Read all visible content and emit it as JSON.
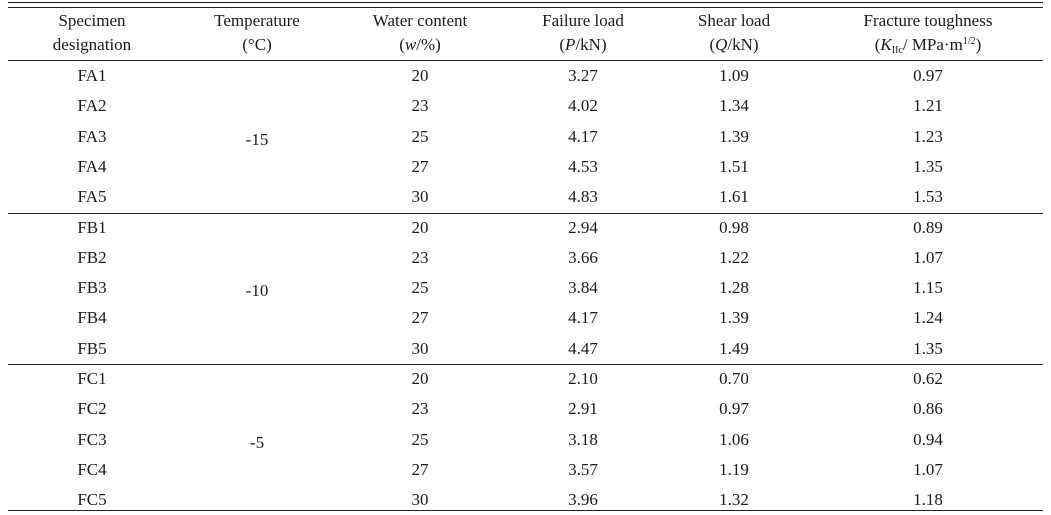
{
  "table": {
    "headers": [
      {
        "line1": "Specimen",
        "line2": "designation"
      },
      {
        "line1": "Temperature",
        "line2": "(°C)"
      },
      {
        "line1": "Water content",
        "line2_pre": "(",
        "line2_var": "w",
        "line2_post": "/%)"
      },
      {
        "line1": "Failure load",
        "line2_pre": "(",
        "line2_var": "P",
        "line2_post": "/kN)"
      },
      {
        "line1": "Shear load",
        "line2_pre": "(",
        "line2_var": "Q",
        "line2_post": "/kN)"
      },
      {
        "line1": "Fracture toughness",
        "line2_pre": "(",
        "line2_var": "K",
        "line2_sub": "IIc",
        "line2_mid": "/ MPa·m",
        "line2_sup": "1/2",
        "line2_post": ")"
      }
    ],
    "groups": [
      {
        "temperature": "-15",
        "rows": [
          {
            "specimen": "FA1",
            "water": "20",
            "failure": "3.27",
            "shear": "1.09",
            "toughness": "0.97"
          },
          {
            "specimen": "FA2",
            "water": "23",
            "failure": "4.02",
            "shear": "1.34",
            "toughness": "1.21"
          },
          {
            "specimen": "FA3",
            "water": "25",
            "failure": "4.17",
            "shear": "1.39",
            "toughness": "1.23"
          },
          {
            "specimen": "FA4",
            "water": "27",
            "failure": "4.53",
            "shear": "1.51",
            "toughness": "1.35"
          },
          {
            "specimen": "FA5",
            "water": "30",
            "failure": "4.83",
            "shear": "1.61",
            "toughness": "1.53"
          }
        ]
      },
      {
        "temperature": "-10",
        "rows": [
          {
            "specimen": "FB1",
            "water": "20",
            "failure": "2.94",
            "shear": "0.98",
            "toughness": "0.89"
          },
          {
            "specimen": "FB2",
            "water": "23",
            "failure": "3.66",
            "shear": "1.22",
            "toughness": "1.07"
          },
          {
            "specimen": "FB3",
            "water": "25",
            "failure": "3.84",
            "shear": "1.28",
            "toughness": "1.15"
          },
          {
            "specimen": "FB4",
            "water": "27",
            "failure": "4.17",
            "shear": "1.39",
            "toughness": "1.24"
          },
          {
            "specimen": "FB5",
            "water": "30",
            "failure": "4.47",
            "shear": "1.49",
            "toughness": "1.35"
          }
        ]
      },
      {
        "temperature": "-5",
        "rows": [
          {
            "specimen": "FC1",
            "water": "20",
            "failure": "2.10",
            "shear": "0.70",
            "toughness": "0.62"
          },
          {
            "specimen": "FC2",
            "water": "23",
            "failure": "2.91",
            "shear": "0.97",
            "toughness": "0.86"
          },
          {
            "specimen": "FC3",
            "water": "25",
            "failure": "3.18",
            "shear": "1.06",
            "toughness": "0.94"
          },
          {
            "specimen": "FC4",
            "water": "27",
            "failure": "3.57",
            "shear": "1.19",
            "toughness": "1.07"
          },
          {
            "specimen": "FC5",
            "water": "30",
            "failure": "3.96",
            "shear": "1.32",
            "toughness": "1.18"
          }
        ]
      }
    ]
  }
}
